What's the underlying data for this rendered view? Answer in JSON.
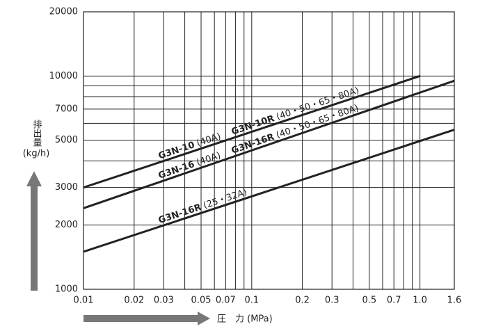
{
  "chart_data": {
    "type": "line",
    "x_label": "圧　力 (MPa)",
    "y_label": "排出量",
    "y_unit": "(kg/h)",
    "log_x": true,
    "log_y": true,
    "grid": true,
    "xlim": [
      0.01,
      1.6
    ],
    "ylim": [
      1000,
      20000
    ],
    "xticks": [
      0.01,
      0.02,
      0.03,
      0.05,
      0.07,
      0.1,
      0.2,
      0.3,
      0.5,
      0.7,
      {
        "value": 1,
        "label": "1.0"
      },
      1.6
    ],
    "minor_xticks": [
      0.04,
      0.06,
      0.08,
      0.09,
      0.4,
      0.6,
      0.8,
      0.9
    ],
    "yticks": [
      1000,
      2000,
      3000,
      5000,
      7000,
      10000,
      20000
    ],
    "minor_yticks": [
      4000,
      6000,
      8000,
      9000
    ],
    "series": [
      {
        "color": "#222222",
        "x": [
          0.01,
          1
        ],
        "values": [
          3000,
          10000
        ],
        "labels": [
          {
            "model": "G3N-10",
            "size": "(40A)"
          },
          {
            "model": "G3N-10R",
            "size": "(40・50・65・80A)"
          }
        ]
      },
      {
        "color": "#222222",
        "x": [
          0.01,
          1.6
        ],
        "values": [
          2400,
          9500
        ],
        "labels": [
          {
            "model": "G3N-16",
            "size": "(40A)"
          },
          {
            "model": "G3N-16R",
            "size": "(40・50・65・80A)"
          }
        ]
      },
      {
        "color": "#222222",
        "x": [
          0.01,
          1.6
        ],
        "values": [
          1500,
          5600
        ],
        "labels": [
          {
            "model": "G3N-16R",
            "size": "(25・32A)"
          }
        ]
      }
    ]
  }
}
